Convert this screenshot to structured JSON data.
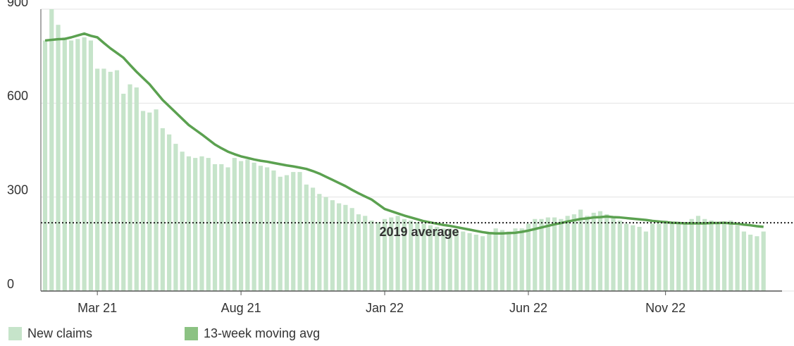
{
  "chart_data": {
    "type": "bar",
    "categories": [
      null,
      null,
      null,
      null,
      null,
      null,
      null,
      null,
      "Mar 21",
      null,
      null,
      null,
      null,
      null,
      null,
      null,
      null,
      null,
      null,
      null,
      null,
      null,
      null,
      null,
      null,
      null,
      null,
      null,
      null,
      null,
      "Aug 21",
      null,
      null,
      null,
      null,
      null,
      null,
      null,
      null,
      null,
      null,
      null,
      null,
      null,
      null,
      null,
      null,
      null,
      null,
      null,
      null,
      null,
      "Jan 22",
      null,
      null,
      null,
      null,
      null,
      null,
      null,
      null,
      null,
      null,
      null,
      null,
      null,
      null,
      null,
      null,
      null,
      null,
      null,
      null,
      null,
      "Jun 22",
      null,
      null,
      null,
      null,
      null,
      null,
      null,
      null,
      null,
      null,
      null,
      null,
      null,
      null,
      null,
      null,
      null,
      null,
      null,
      null,
      "Nov 22",
      null,
      null,
      null,
      null,
      null,
      null,
      null,
      null,
      null,
      null,
      null,
      null,
      null,
      null,
      null
    ],
    "series": [
      {
        "name": "New claims",
        "type": "bar",
        "color": "#c6e4ca",
        "values": [
          800,
          900,
          850,
          810,
          800,
          805,
          810,
          800,
          710,
          710,
          700,
          705,
          630,
          660,
          650,
          575,
          570,
          580,
          520,
          500,
          470,
          445,
          430,
          425,
          430,
          425,
          405,
          405,
          395,
          425,
          415,
          420,
          410,
          400,
          395,
          385,
          365,
          370,
          380,
          380,
          340,
          330,
          310,
          300,
          290,
          280,
          275,
          265,
          245,
          240,
          225,
          220,
          230,
          235,
          240,
          230,
          225,
          220,
          215,
          210,
          205,
          200,
          200,
          195,
          190,
          185,
          180,
          175,
          185,
          200,
          195,
          190,
          200,
          200,
          215,
          230,
          230,
          235,
          235,
          230,
          240,
          245,
          260,
          240,
          250,
          255,
          245,
          235,
          225,
          215,
          210,
          205,
          190,
          215,
          215,
          225,
          220,
          215,
          220,
          230,
          240,
          230,
          225,
          220,
          215,
          225,
          210,
          190,
          180,
          175,
          190
        ]
      },
      {
        "name": "13-week moving avg",
        "type": "line",
        "color": "#5ba150",
        "values": [
          800,
          802,
          804,
          805,
          810,
          816,
          822,
          815,
          810,
          792,
          775,
          760,
          745,
          722,
          700,
          680,
          660,
          635,
          610,
          590,
          570,
          550,
          530,
          515,
          500,
          484,
          468,
          456,
          445,
          437,
          430,
          425,
          420,
          416,
          413,
          409,
          405,
          401,
          398,
          394,
          390,
          383,
          375,
          365,
          355,
          345,
          335,
          323,
          312,
          302,
          292,
          277,
          262,
          255,
          248,
          241,
          235,
          229,
          223,
          219,
          215,
          211,
          208,
          204,
          200,
          196,
          192,
          188,
          185,
          184,
          184,
          185,
          186,
          189,
          193,
          198,
          203,
          208,
          213,
          217,
          222,
          226,
          230,
          232,
          235,
          236,
          238,
          236,
          235,
          233,
          231,
          229,
          227,
          224,
          222,
          220,
          218,
          217,
          216,
          216,
          216,
          216,
          217,
          217,
          218,
          216,
          215,
          212,
          210,
          207,
          205
        ]
      }
    ],
    "reference": {
      "value": 218,
      "label": "2019 average"
    },
    "ylim": [
      0,
      900
    ],
    "yticks": [
      0,
      300,
      600,
      900
    ],
    "grid": true
  }
}
